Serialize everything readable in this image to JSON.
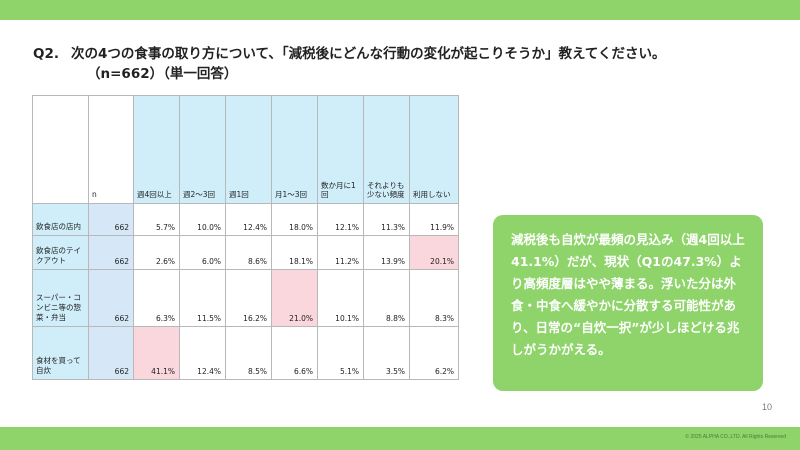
{
  "question": {
    "number": "Q2.",
    "text": "次の4つの食事の取り方について、「減税後にどんな行動の変化が起こりそうか」教えてください。",
    "sub": "（n=662）（単一回答）"
  },
  "table": {
    "n_header": "n",
    "columns": [
      "週4回以上",
      "週2～3回",
      "週1回",
      "月1～3回",
      "数か月に1回",
      "それよりも少ない頻度",
      "利用しない"
    ],
    "rows": [
      {
        "label": "飲食店の店内",
        "n": "662",
        "values": [
          "5.7%",
          "10.0%",
          "12.4%",
          "18.0%",
          "12.1%",
          "11.3%",
          "11.9%"
        ]
      },
      {
        "label": "飲食店のテイクアウト",
        "n": "662",
        "values": [
          "2.6%",
          "6.0%",
          "8.6%",
          "18.1%",
          "11.2%",
          "13.9%",
          "20.1%"
        ]
      },
      {
        "label": "スーパー・コンビニ等の惣菜・弁当",
        "n": "662",
        "values": [
          "6.3%",
          "11.5%",
          "16.2%",
          "21.0%",
          "10.1%",
          "8.8%",
          "8.3%"
        ]
      },
      {
        "label": "食材を買って自炊",
        "n": "662",
        "values": [
          "41.1%",
          "12.4%",
          "8.5%",
          "6.6%",
          "5.1%",
          "3.5%",
          "6.2%"
        ]
      }
    ]
  },
  "note": "減税後も自炊が最頻の見込み（週4回以上41.1%）だが、現状（Q1の47.3%）より高頻度層はやや薄まる。浮いた分は外食・中食へ緩やかに分散する可能性があり、日常の“自炊一択”が少しほどける兆しがうかがえる。",
  "page_number": "10",
  "copyright": "© 2025 ALPHA CO.,LTD. All Rights Reserved",
  "colors": {
    "accent_green": "#8ed46a",
    "header_blue": "#cfeefa",
    "n_blue": "#d6e8f7",
    "highlight_pink": "#f9d7dc"
  }
}
